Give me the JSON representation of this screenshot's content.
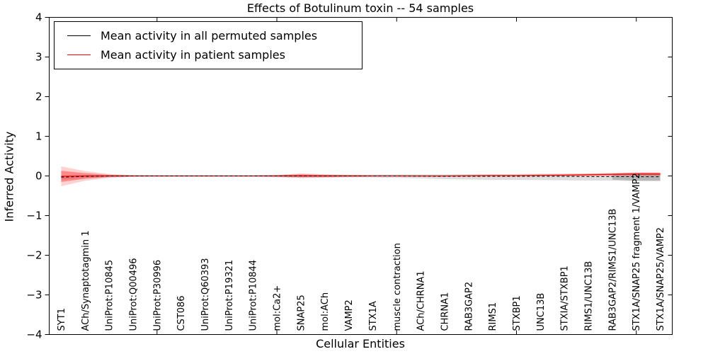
{
  "chart_data": {
    "type": "line",
    "title": "Effects of Botulinum toxin -- 54 samples",
    "xlabel": "Cellular Entities",
    "ylabel": "Inferred Activity",
    "ylim": [
      -4,
      4
    ],
    "ytick_labels": [
      "4",
      "3",
      "2",
      "1",
      "0",
      "−1",
      "−2",
      "−3",
      "−4"
    ],
    "ytick_values": [
      4,
      3,
      2,
      1,
      0,
      -1,
      -2,
      -3,
      -4
    ],
    "xtick_values": [
      5,
      10,
      15,
      20,
      25
    ],
    "grid": false,
    "legend_position": "upper left",
    "categories": [
      "SYT1",
      "ACh/Synaptotagmin 1",
      "UniProt:P10845",
      "UniProt:Q00496",
      "UniProt:P30996",
      "CST086",
      "UniProt:Q60393",
      "UniProt:P19321",
      "UniProt:P10844",
      "mol:Ca2+",
      "SNAP25",
      "mol:ACh",
      "VAMP2",
      "STX1A",
      "muscle contraction",
      "ACh/CHRNA1",
      "CHRNA1",
      "RAB3GAP2",
      "RIMS1",
      "STXBP1",
      "UNC13B",
      "STXIA/STXBP1",
      "RIMS1/UNC13B",
      "RAB3GAP2/RIMS1/UNC13B",
      "STX1A/SNAP25 fragment 1/VAMP2",
      "STX1A/SNAP25/VAMP2"
    ],
    "series": [
      {
        "name": "Mean activity in all permuted samples",
        "color": "#000000",
        "style": "dashed",
        "values": [
          -0.03,
          -0.01,
          0,
          0,
          0,
          0,
          0,
          0,
          0,
          0,
          0,
          0,
          0,
          0,
          0,
          -0.005,
          -0.01,
          -0.01,
          -0.01,
          -0.01,
          -0.01,
          -0.01,
          -0.015,
          -0.015,
          -0.02,
          -0.02
        ]
      },
      {
        "name": "Mean activity in patient samples",
        "color": "#ff0000",
        "style": "solid",
        "values": [
          -0.01,
          0,
          0,
          0,
          0,
          0,
          0,
          0,
          0,
          0,
          0.005,
          0,
          0,
          0,
          0,
          0,
          0,
          0.005,
          0.01,
          0.01,
          0.015,
          0.02,
          0.03,
          0.04,
          0.05,
          0.05
        ]
      }
    ],
    "bands": [
      {
        "name": "permuted-samples-range",
        "color": "#000000",
        "opacity": 0.13,
        "center_series": 0,
        "start_index": 0,
        "upper": [
          0.04,
          0.03,
          0.025,
          0.025,
          0.025,
          0.025,
          0.025,
          0.025,
          0.025,
          0.03,
          0.03,
          0.03,
          0.03,
          0.035,
          0.04,
          0.045,
          0.05,
          0.055,
          0.06,
          0.06,
          0.065,
          0.07,
          0.07,
          0.075,
          0.09,
          0.09
        ],
        "lower": [
          0.06,
          0.04,
          0.03,
          0.03,
          0.03,
          0.03,
          0.03,
          0.03,
          0.03,
          0.035,
          0.04,
          0.035,
          0.035,
          0.04,
          0.05,
          0.06,
          0.07,
          0.08,
          0.09,
          0.09,
          0.095,
          0.1,
          0.1,
          0.1,
          0.11,
          0.11
        ]
      },
      {
        "name": "permuted-samples-range-dark",
        "color": "#000000",
        "opacity": 0.18,
        "center_series": 0,
        "start_index": 23,
        "upper": [
          0.07,
          0.085,
          0.085
        ],
        "lower": [
          0.08,
          0.1,
          0.1
        ]
      },
      {
        "name": "patient-samples-range-outer",
        "color": "#ff0000",
        "opacity": 0.18,
        "center_series": 1,
        "start_index": 0,
        "upper": [
          0.25,
          0.12,
          0.05,
          0.02,
          0.015,
          0.015,
          0.015,
          0.015,
          0.015,
          0.025,
          0.06,
          0.045,
          0.03,
          0.02,
          0.02,
          0.02,
          0.02,
          0.02,
          0.02,
          0.02,
          0.022,
          0.025,
          0.03,
          0.035,
          0.045,
          0.045
        ],
        "lower": [
          0.25,
          0.12,
          0.05,
          0.02,
          0.015,
          0.015,
          0.015,
          0.015,
          0.015,
          0.025,
          0.06,
          0.045,
          0.03,
          0.02,
          0.02,
          0.02,
          0.02,
          0.02,
          0.02,
          0.02,
          0.022,
          0.025,
          0.03,
          0.035,
          0.045,
          0.045
        ]
      },
      {
        "name": "patient-samples-range-inner",
        "color": "#ff0000",
        "opacity": 0.35,
        "center_series": 1,
        "start_index": 0,
        "upper": [
          0.14,
          0.07,
          0.03,
          0.012,
          0.009,
          0.009,
          0.009,
          0.009,
          0.009,
          0.015,
          0.035,
          0.027,
          0.018,
          0.012,
          0.012,
          0.012,
          0.012,
          0.012,
          0.012,
          0.012,
          0.013,
          0.015,
          0.018,
          0.02,
          0.027,
          0.027
        ],
        "lower": [
          0.14,
          0.07,
          0.03,
          0.012,
          0.009,
          0.009,
          0.009,
          0.009,
          0.009,
          0.015,
          0.035,
          0.027,
          0.018,
          0.012,
          0.012,
          0.012,
          0.012,
          0.012,
          0.012,
          0.012,
          0.013,
          0.015,
          0.018,
          0.02,
          0.027,
          0.027
        ]
      }
    ],
    "legend": [
      {
        "label": "Mean activity in all permuted samples",
        "color": "#000000"
      },
      {
        "label": "Mean activity in patient samples",
        "color": "#ff0000"
      }
    ]
  }
}
